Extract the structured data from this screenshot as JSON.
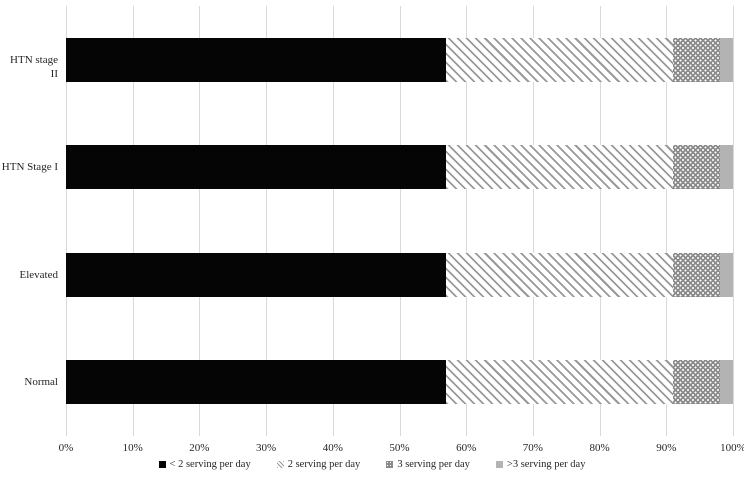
{
  "chart_data": {
    "type": "bar",
    "orientation": "horizontal",
    "stacked": true,
    "title": "",
    "xlabel": "",
    "ylabel": "",
    "categories": [
      "HTN stage II",
      "HTN Stage I",
      "Elevated",
      "Normal"
    ],
    "series": [
      {
        "name": "< 2 serving per day",
        "key": "lt2",
        "values": [
          57,
          57,
          57,
          57
        ]
      },
      {
        "name": "2 serving per day",
        "key": "s2",
        "values": [
          34,
          34,
          34,
          34
        ]
      },
      {
        "name": "3 serving per day",
        "key": "s3",
        "values": [
          7,
          7,
          7,
          7
        ]
      },
      {
        "name": ">3 serving per day",
        "key": "gt3",
        "values": [
          2,
          2,
          2,
          2
        ]
      }
    ],
    "x_ticks": [
      "0%",
      "10%",
      "20%",
      "30%",
      "40%",
      "50%",
      "60%",
      "70%",
      "80%",
      "90%",
      "100%"
    ],
    "x_tick_values": [
      0,
      10,
      20,
      30,
      40,
      50,
      60,
      70,
      80,
      90,
      100
    ],
    "xlim": [
      0,
      100
    ],
    "grid": "vertical",
    "legend_position": "bottom",
    "colors": {
      "lt2_fill": "#050505",
      "s2_hatch_line": "#999999",
      "s2_hatch_bg": "#ffffff",
      "s3_dots_bg": "#8a8a8a",
      "s3_dot": "#ffffff",
      "gt3_fill": "#b3b3b3",
      "gridline": "#d9d9d9",
      "text": "#262626",
      "background": "#ffffff"
    }
  }
}
